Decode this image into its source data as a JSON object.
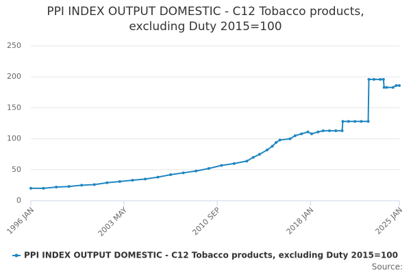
{
  "chart_data": {
    "type": "line",
    "title": "PPI INDEX OUTPUT DOMESTIC - C12 Tobacco products, excluding Duty 2015=100",
    "source": "Source:",
    "x": [
      1996,
      1997,
      1998,
      1999,
      2000,
      2001,
      2002,
      2003,
      2004,
      2005,
      2006,
      2007,
      2008,
      2009,
      2010,
      2011,
      2012,
      2013,
      2013.5,
      2014,
      2014.6,
      2015,
      2015.3,
      2015.6,
      2016.4,
      2016.8,
      2017.3,
      2017.8,
      2018.1,
      2018.6,
      2019,
      2019.5,
      2020,
      2020.5,
      2020.55,
      2021,
      2021.5,
      2022,
      2022.55,
      2022.6,
      2023,
      2023.5,
      2023.75,
      2023.8,
      2024,
      2024.5,
      2024.75,
      2025
    ],
    "series": [
      {
        "name": "PPI INDEX OUTPUT DOMESTIC - C12 Tobacco products, excluding Duty 2015=100",
        "color": "#1f86c0",
        "values": [
          20,
          20,
          22,
          23,
          25,
          26,
          29,
          31,
          33,
          35,
          38,
          42,
          45,
          48,
          52,
          57,
          60,
          64,
          70,
          75,
          82,
          88,
          94,
          98,
          100,
          105,
          108,
          111,
          108,
          111,
          113,
          113,
          113,
          113,
          128,
          128,
          128,
          128,
          128,
          196,
          196,
          196,
          196,
          183,
          183,
          183,
          186,
          186
        ]
      }
    ],
    "xlim": [
      1996,
      2025
    ],
    "xticks": [
      {
        "value": 1996,
        "label": "1996 JAN"
      },
      {
        "value": 2003.333,
        "label": "2003 MAY"
      },
      {
        "value": 2010.667,
        "label": "2010 SEP"
      },
      {
        "value": 2018,
        "label": "2018 JAN"
      },
      {
        "value": 2025,
        "label": "2025 JAN"
      }
    ],
    "ylim": [
      0,
      250
    ],
    "yticks": [
      0,
      50,
      100,
      150,
      200,
      250
    ],
    "grid": true
  }
}
